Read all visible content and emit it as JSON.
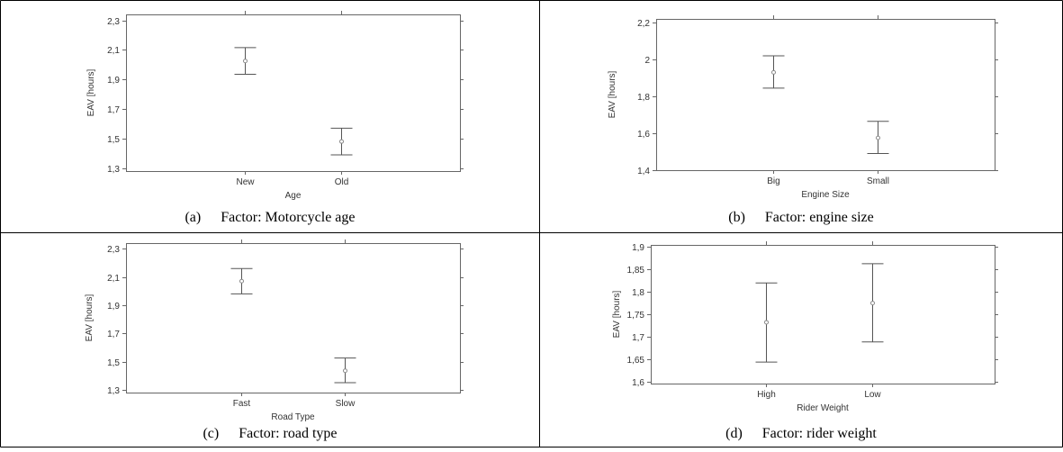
{
  "chart_data": [
    {
      "type": "scatter",
      "letter": "(a)",
      "caption": "Factor: Motorcycle age",
      "xlabel": "Age",
      "ylabel": "EAV [hours]",
      "ylim": [
        1.28,
        2.34
      ],
      "yticks": [
        "1,3",
        "1,5",
        "1,7",
        "1,9",
        "2,1",
        "2,3"
      ],
      "ytick_values": [
        1.3,
        1.5,
        1.7,
        1.9,
        2.1,
        2.3
      ],
      "categories": [
        "New",
        "Old"
      ],
      "means": [
        2.025,
        1.48
      ],
      "lower": [
        1.935,
        1.39
      ],
      "upper": [
        2.115,
        1.57
      ]
    },
    {
      "type": "scatter",
      "letter": "(b)",
      "caption": "Factor: engine size",
      "xlabel": "Engine Size",
      "ylabel": "EAV [hours]",
      "ylim": [
        1.4,
        2.22
      ],
      "yticks": [
        "1,4",
        "1,6",
        "1,8",
        "2",
        "2,2"
      ],
      "ytick_values": [
        1.4,
        1.6,
        1.8,
        2.0,
        2.2
      ],
      "categories": [
        "Big",
        "Small"
      ],
      "means": [
        1.93,
        1.575
      ],
      "lower": [
        1.845,
        1.49
      ],
      "upper": [
        2.02,
        1.665
      ]
    },
    {
      "type": "scatter",
      "letter": "(c)",
      "caption": "Factor: road type",
      "xlabel": "Road Type",
      "ylabel": "EAV [hours]",
      "ylim": [
        1.28,
        2.34
      ],
      "yticks": [
        "1,3",
        "1,5",
        "1,7",
        "1,9",
        "2,1",
        "2,3"
      ],
      "ytick_values": [
        1.3,
        1.5,
        1.7,
        1.9,
        2.1,
        2.3
      ],
      "categories": [
        "Fast",
        "Slow"
      ],
      "means": [
        2.07,
        1.435
      ],
      "lower": [
        1.98,
        1.35
      ],
      "upper": [
        2.16,
        1.525
      ]
    },
    {
      "type": "scatter",
      "letter": "(d)",
      "caption": "Factor: rider weight",
      "xlabel": "Rider Weight",
      "ylabel": "EAV [hours]",
      "ylim": [
        1.595,
        1.905
      ],
      "yticks": [
        "1,6",
        "1,65",
        "1,7",
        "1,75",
        "1,8",
        "1,85",
        "1,9"
      ],
      "ytick_values": [
        1.6,
        1.65,
        1.7,
        1.75,
        1.8,
        1.85,
        1.9
      ],
      "categories": [
        "High",
        "Low"
      ],
      "means": [
        1.732,
        1.775
      ],
      "lower": [
        1.643,
        1.688
      ],
      "upper": [
        1.82,
        1.863
      ]
    }
  ]
}
